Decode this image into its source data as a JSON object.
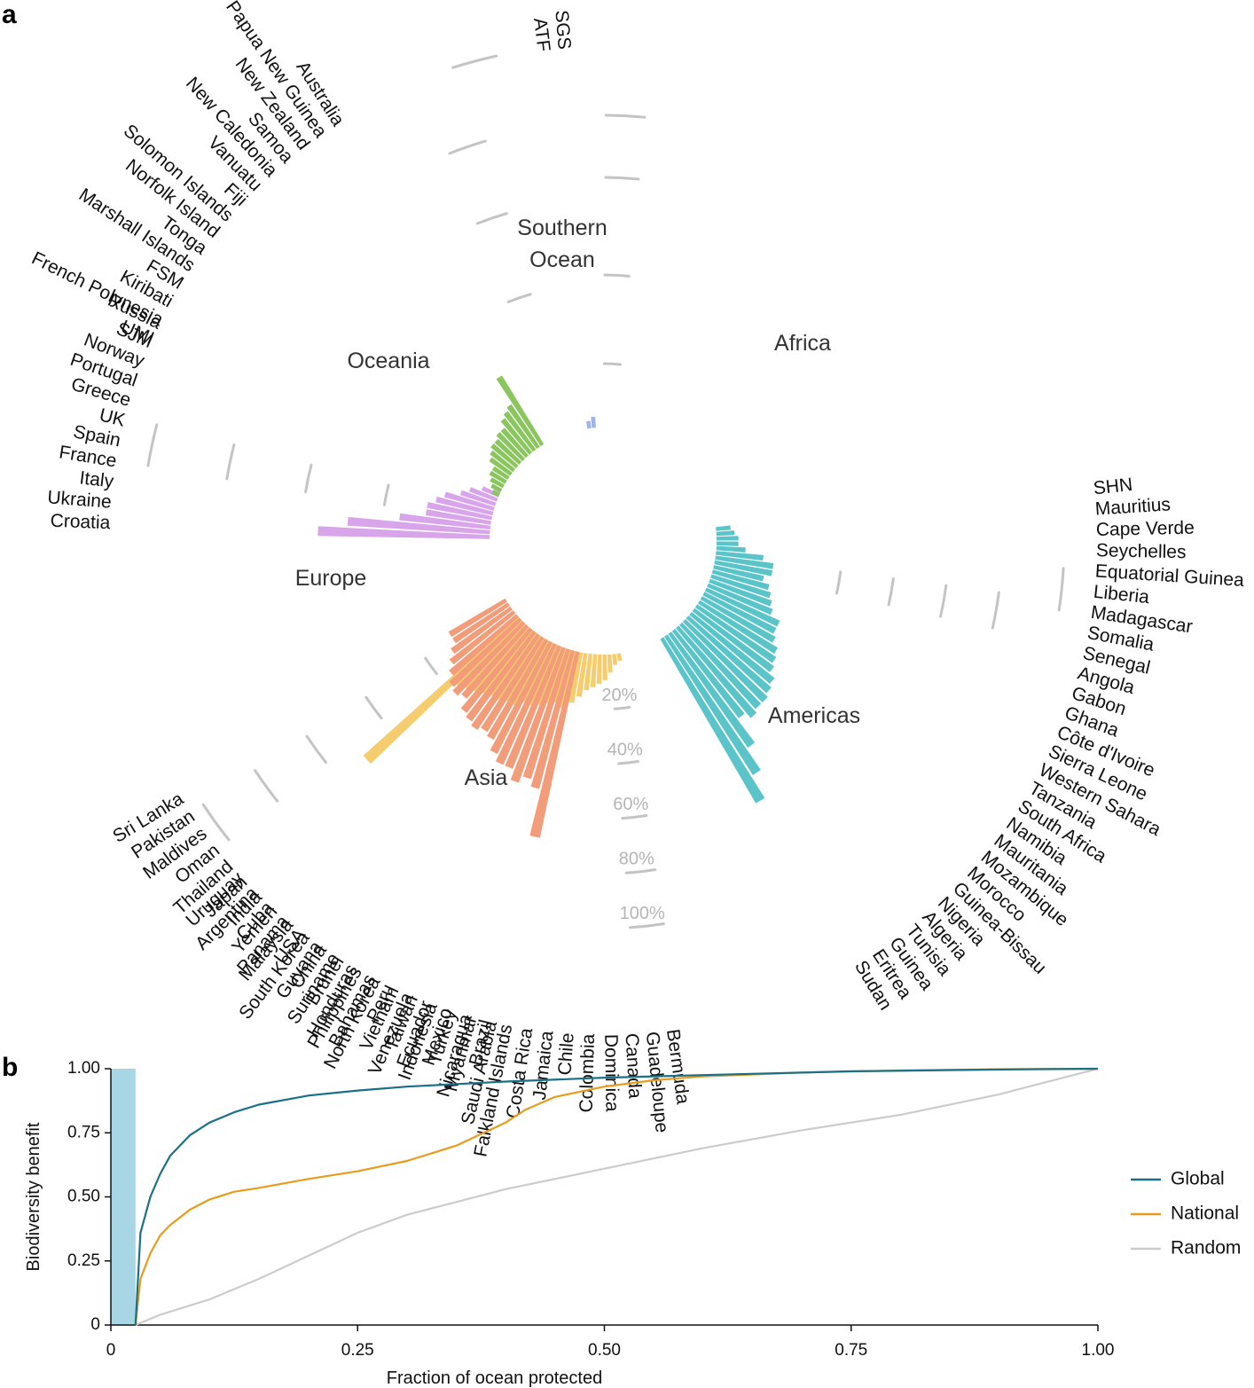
{
  "panel_a_label": "a",
  "panel_b_label": "b",
  "chart_data": [
    {
      "type": "bar",
      "layout": "radial",
      "ring_labels": [
        "20%",
        "40%",
        "60%",
        "80%",
        "100%"
      ],
      "rmax_fraction": 1.0,
      "groups": [
        {
          "name": "Africa",
          "color": "#5bc4c9",
          "countries": [
            "SHN",
            "Mauritius",
            "Cape Verde",
            "Seychelles",
            "Equatorial Guinea",
            "Liberia",
            "Madagascar",
            "Somalia",
            "Senegal",
            "Angola",
            "Gabon",
            "Ghana",
            "Côte d'Ivoire",
            "Sierra Leone",
            "Western Sahara",
            "Tanzania",
            "South Africa",
            "Namibia",
            "Mauritania",
            "Mozambique",
            "Morocco",
            "Guinea-Bissau",
            "Nigeria",
            "Algeria",
            "Tunisia",
            "Guinea",
            "Eritrea",
            "Sudan"
          ],
          "values": [
            0.04,
            0.05,
            0.06,
            0.06,
            0.08,
            0.13,
            0.16,
            0.16,
            0.14,
            0.16,
            0.17,
            0.18,
            0.19,
            0.22,
            0.22,
            0.23,
            0.25,
            0.26,
            0.27,
            0.29,
            0.3,
            0.31,
            0.31,
            0.32,
            0.3,
            0.38,
            0.45,
            0.52
          ]
        },
        {
          "name": "Americas",
          "color": "#f5cd6e",
          "countries": [
            "Bermuda",
            "Guadeloupe",
            "Canada",
            "Dominica",
            "Colombia",
            "Chile",
            "Jamaica",
            "Costa Rica",
            "Falkland Islands",
            "Brazil",
            "Nicaragua",
            "Mexico",
            "Ecuador",
            "Venezuela",
            "Peru",
            "Bahamas",
            "Honduras",
            "Suriname",
            "Guyana",
            "USA",
            "Panama",
            "Cuba",
            "Argentina",
            "Uruguay"
          ],
          "values": [
            0.02,
            0.03,
            0.05,
            0.07,
            0.08,
            0.09,
            0.1,
            0.12,
            0.14,
            0.16,
            0.15,
            0.16,
            0.17,
            0.18,
            0.18,
            0.2,
            0.2,
            0.21,
            0.21,
            0.22,
            0.23,
            0.24,
            0.25,
            0.57
          ]
        },
        {
          "name": "Asia",
          "color": "#f29c7a",
          "countries": [
            "Saudi Arabia",
            "Myanmar",
            "Turkey",
            "Indonesia",
            "Taiwan",
            "Vietnam",
            "North Korea",
            "Philippines",
            "Brunei",
            "China",
            "South Korea",
            "Malaysia",
            "Yemen",
            "India",
            "Japan",
            "Thailand",
            "Oman",
            "Maldives",
            "Pakistan",
            "Sri Lanka"
          ],
          "values": [
            0.52,
            0.39,
            0.37,
            0.39,
            0.36,
            0.36,
            0.34,
            0.31,
            0.3,
            0.31,
            0.3,
            0.29,
            0.26,
            0.27,
            0.26,
            0.24,
            0.22,
            0.2,
            0.18,
            0.18
          ]
        },
        {
          "name": "Europe",
          "color": "#d9a5ea",
          "countries": [
            "Croatia",
            "Ukraine",
            "Italy",
            "France",
            "Spain",
            "UK",
            "Greece",
            "Portugal",
            "Norway",
            "SJM",
            "Russia"
          ],
          "values": [
            0.47,
            0.39,
            0.25,
            0.18,
            0.18,
            0.16,
            0.14,
            0.1,
            0.08,
            0.05,
            0.02
          ]
        },
        {
          "name": "Oceania",
          "color": "#8bc560",
          "countries": [
            "UMI",
            "French Polynesia",
            "Kiribati",
            "FSM",
            "Marshall Islands",
            "Tonga",
            "Norfolk Island",
            "Solomon Islands",
            "Fiji",
            "Vanuatu",
            "New Caledonia",
            "Samoa",
            "New Zealand",
            "Papua New Guinea",
            "Australia"
          ],
          "values": [
            0.02,
            0.03,
            0.04,
            0.05,
            0.05,
            0.07,
            0.08,
            0.09,
            0.09,
            0.1,
            0.1,
            0.12,
            0.13,
            0.14,
            0.22
          ]
        },
        {
          "name": "Southern\nOcean",
          "color": "#9fb5ea",
          "countries": [
            "ATF",
            "SGS"
          ],
          "values": [
            0.02,
            0.03
          ]
        }
      ]
    },
    {
      "type": "line",
      "xlabel": "Fraction of ocean protected",
      "ylabel": "Biodiversity benefit",
      "xlim": [
        0,
        1
      ],
      "ylim": [
        0,
        1
      ],
      "xticks": [
        "0",
        "0.25",
        "0.50",
        "0.75",
        "1.00"
      ],
      "yticks": [
        "0",
        "0.25",
        "0.50",
        "0.75",
        "1.00"
      ],
      "shaded_region": {
        "x_from": 0,
        "x_to": 0.025,
        "color": "#a9d6e5"
      },
      "legend_position": "right",
      "series": [
        {
          "name": "Global",
          "color": "#1b6f86",
          "x": [
            0.025,
            0.03,
            0.04,
            0.05,
            0.06,
            0.08,
            0.1,
            0.125,
            0.15,
            0.2,
            0.25,
            0.3,
            0.4,
            0.5,
            0.6,
            0.75,
            0.9,
            1.0
          ],
          "y": [
            0.0,
            0.36,
            0.5,
            0.59,
            0.66,
            0.74,
            0.79,
            0.83,
            0.86,
            0.895,
            0.915,
            0.93,
            0.95,
            0.965,
            0.975,
            0.99,
            0.997,
            1.0
          ]
        },
        {
          "name": "National",
          "color": "#e79c1e",
          "x": [
            0.025,
            0.03,
            0.04,
            0.05,
            0.06,
            0.08,
            0.1,
            0.125,
            0.15,
            0.2,
            0.25,
            0.3,
            0.35,
            0.4,
            0.42,
            0.45,
            0.5,
            0.55,
            0.6,
            0.7,
            0.8,
            0.9,
            1.0
          ],
          "y": [
            0.0,
            0.18,
            0.28,
            0.35,
            0.39,
            0.45,
            0.49,
            0.52,
            0.535,
            0.57,
            0.6,
            0.64,
            0.7,
            0.79,
            0.84,
            0.89,
            0.93,
            0.955,
            0.97,
            0.985,
            0.993,
            0.998,
            1.0
          ]
        },
        {
          "name": "Random",
          "color": "#cccccc",
          "x": [
            0.025,
            0.05,
            0.1,
            0.15,
            0.2,
            0.25,
            0.3,
            0.4,
            0.5,
            0.6,
            0.7,
            0.8,
            0.9,
            1.0
          ],
          "y": [
            0.0,
            0.04,
            0.1,
            0.18,
            0.27,
            0.36,
            0.43,
            0.53,
            0.61,
            0.69,
            0.76,
            0.82,
            0.9,
            1.0
          ]
        }
      ]
    }
  ]
}
